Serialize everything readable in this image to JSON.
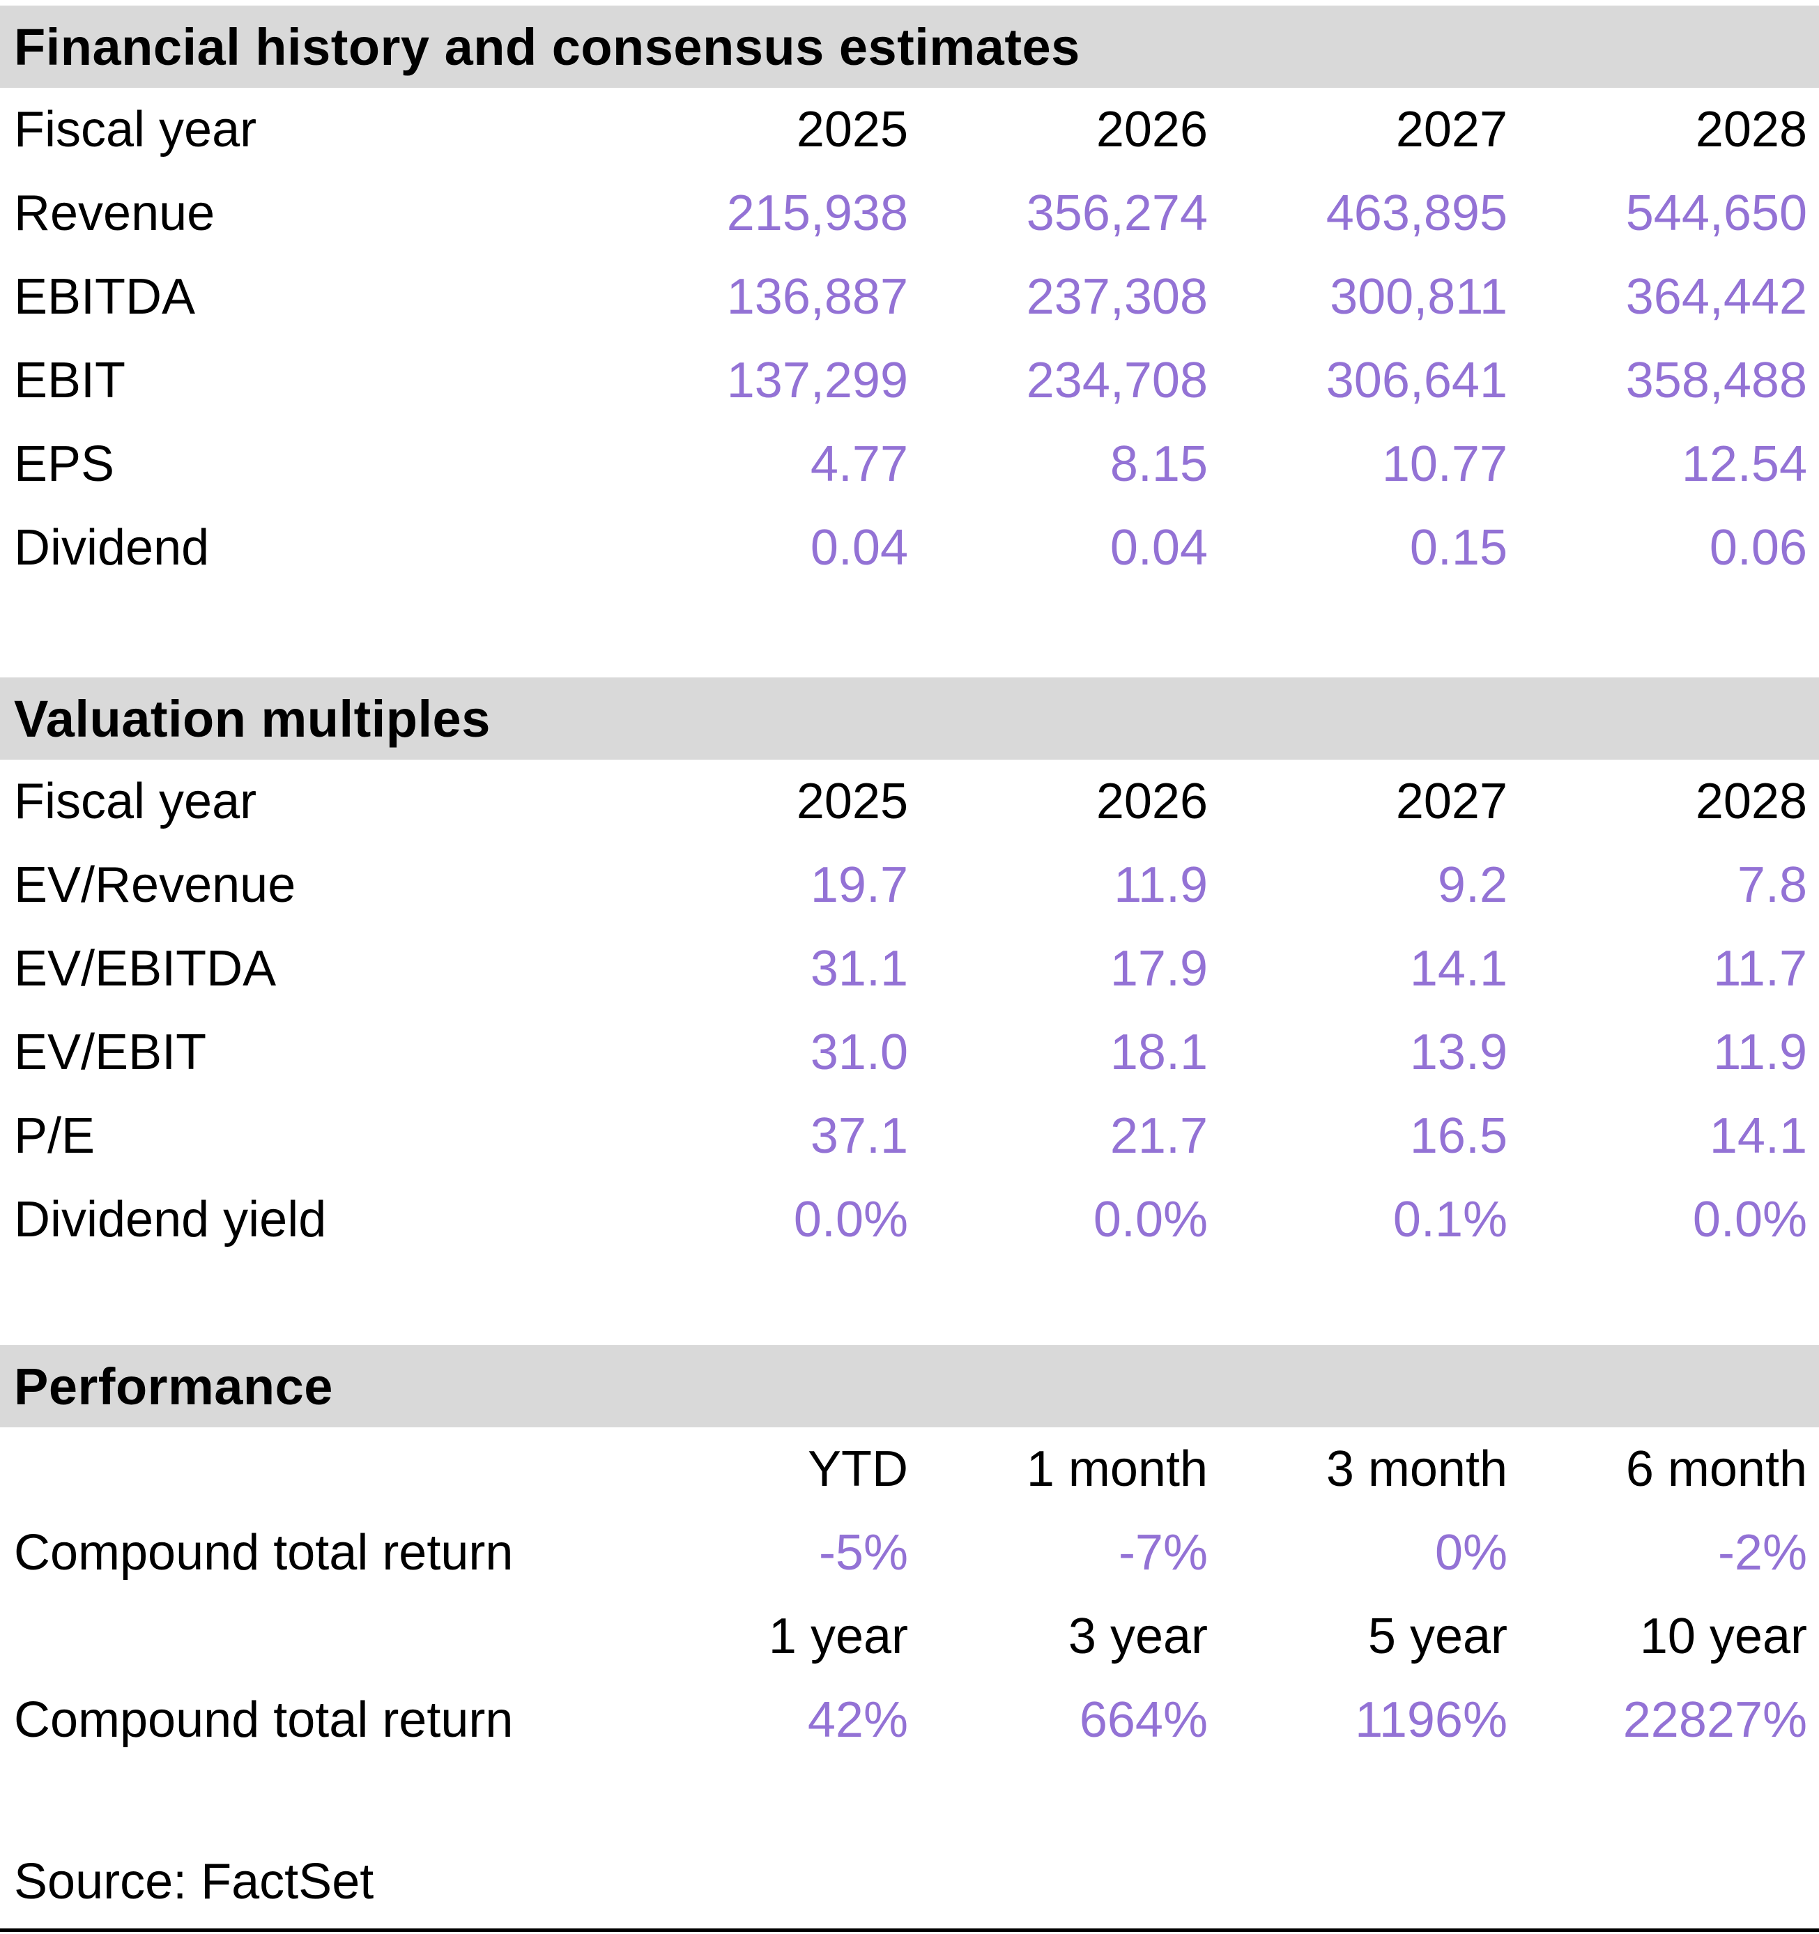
{
  "colors": {
    "accent": "#9372d5",
    "section_header_bg": "#d9d9d9",
    "text": "#000000"
  },
  "sections": [
    {
      "title": "Financial history and consensus estimates",
      "header_label": "Fiscal year",
      "columns": [
        "2025",
        "2026",
        "2027",
        "2028"
      ],
      "rows": [
        {
          "label": "Revenue",
          "values": [
            "215,938",
            "356,274",
            "463,895",
            "544,650"
          ]
        },
        {
          "label": "EBITDA",
          "values": [
            "136,887",
            "237,308",
            "300,811",
            "364,442"
          ]
        },
        {
          "label": "EBIT",
          "values": [
            "137,299",
            "234,708",
            "306,641",
            "358,488"
          ]
        },
        {
          "label": "EPS",
          "values": [
            "4.77",
            "8.15",
            "10.77",
            "12.54"
          ]
        },
        {
          "label": "Dividend",
          "values": [
            "0.04",
            "0.04",
            "0.15",
            "0.06"
          ]
        }
      ]
    },
    {
      "title": "Valuation multiples",
      "header_label": "Fiscal year",
      "columns": [
        "2025",
        "2026",
        "2027",
        "2028"
      ],
      "rows": [
        {
          "label": "EV/Revenue",
          "values": [
            "19.7",
            "11.9",
            "9.2",
            "7.8"
          ]
        },
        {
          "label": "EV/EBITDA",
          "values": [
            "31.1",
            "17.9",
            "14.1",
            "11.7"
          ]
        },
        {
          "label": "EV/EBIT",
          "values": [
            "31.0",
            "18.1",
            "13.9",
            "11.9"
          ]
        },
        {
          "label": "P/E",
          "values": [
            "37.1",
            "21.7",
            "16.5",
            "14.1"
          ]
        },
        {
          "label": "Dividend yield",
          "values": [
            "0.0%",
            "0.0%",
            "0.1%",
            "0.0%"
          ]
        }
      ]
    },
    {
      "title": "Performance",
      "groups": [
        {
          "columns": [
            "YTD",
            "1 month",
            "3 month",
            "6 month"
          ],
          "row": {
            "label": "Compound total return",
            "values": [
              "-5%",
              "-7%",
              "0%",
              "-2%"
            ]
          }
        },
        {
          "columns": [
            "1 year",
            "3 year",
            "5 year",
            "10 year"
          ],
          "row": {
            "label": "Compound total return",
            "values": [
              "42%",
              "664%",
              "1196%",
              "22827%"
            ]
          }
        }
      ]
    }
  ],
  "source_note": "Source: FactSet"
}
